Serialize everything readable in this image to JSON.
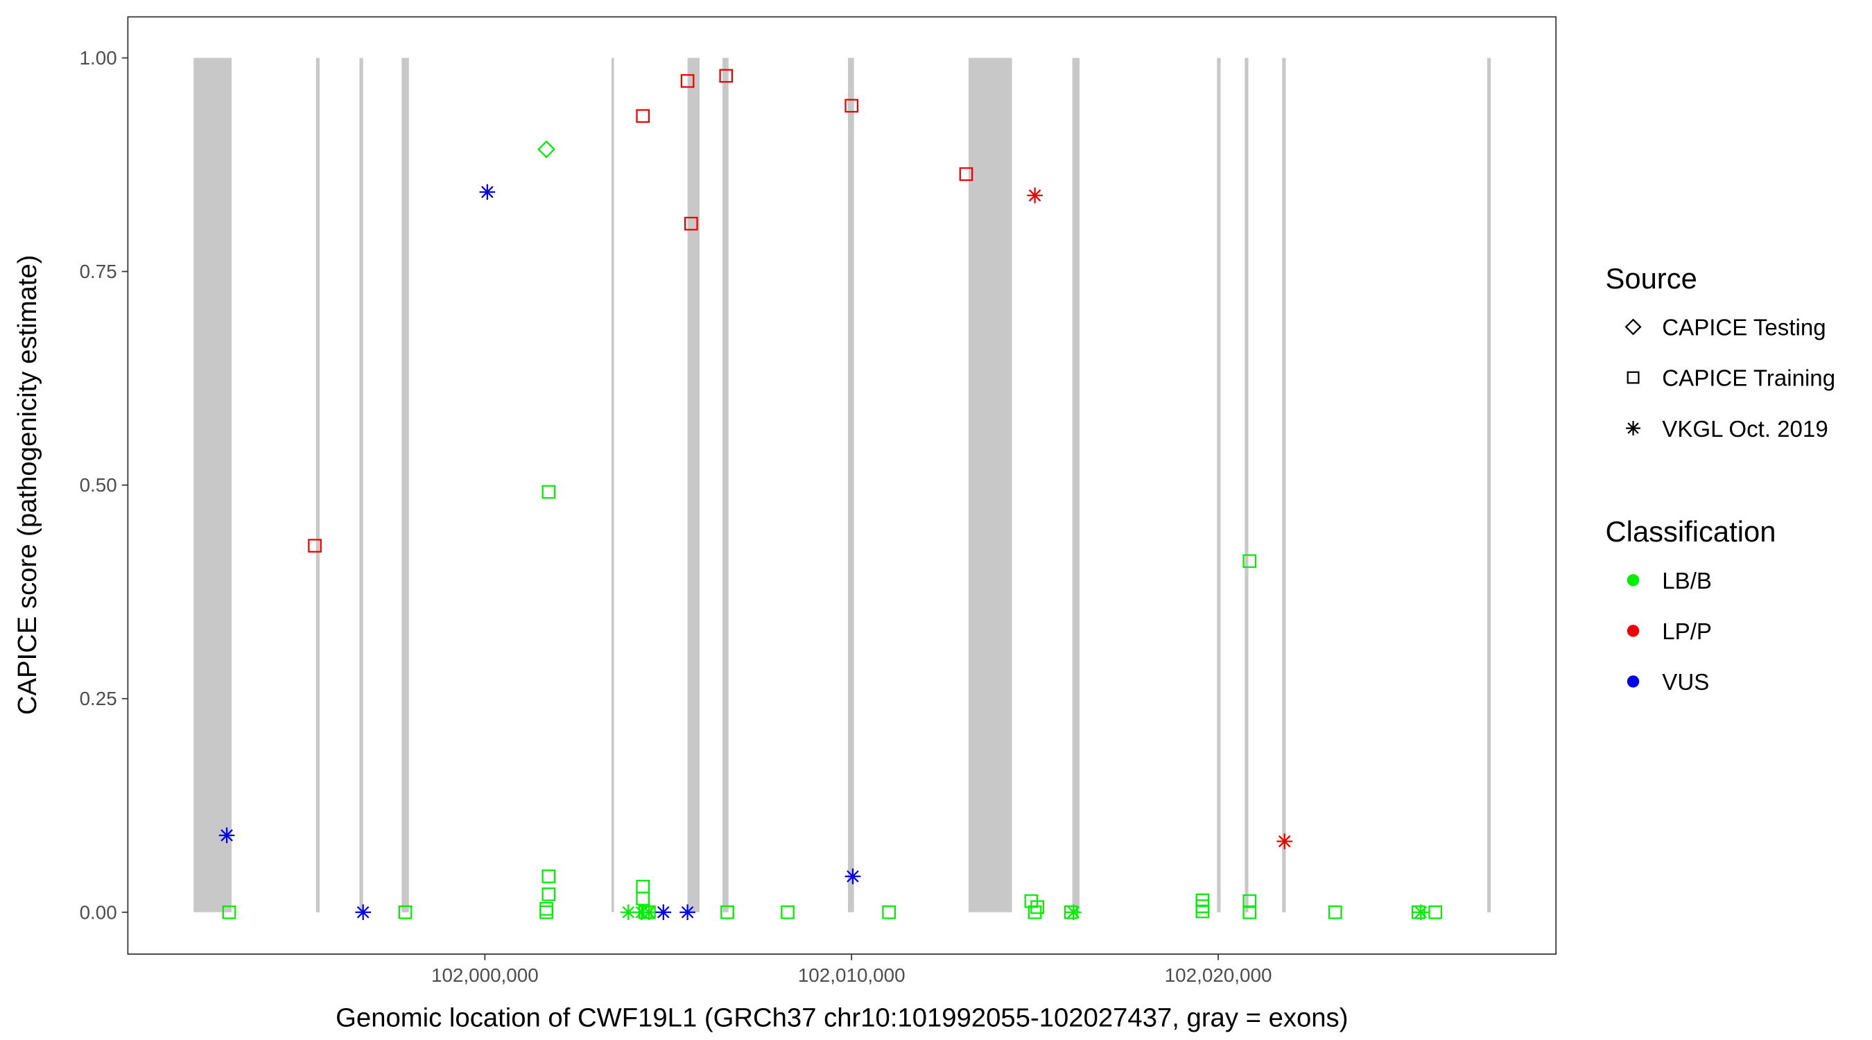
{
  "chart_data": {
    "type": "scatter",
    "x_label": "Genomic location of CWF19L1 (GRCh37 chr10:101992055-102027437, gray = exons)",
    "y_label": "CAPICE score (pathogenicity estimate)",
    "xlim": [
      101990263,
      102029211
    ],
    "ylim": [
      -0.049,
      1.048
    ],
    "xticks": [
      {
        "value": 102000000,
        "label": "102,000,000"
      },
      {
        "value": 102010000,
        "label": "102,010,000"
      },
      {
        "value": 102020000,
        "label": "102,020,000"
      }
    ],
    "yticks": [
      {
        "value": 0,
        "label": "0.00"
      },
      {
        "value": 0.25,
        "label": "0.25"
      },
      {
        "value": 0.5,
        "label": "0.50"
      },
      {
        "value": 0.75,
        "label": "0.75"
      },
      {
        "value": 1,
        "label": "1.00"
      }
    ],
    "exon_color": "#c8c8c8",
    "exons": [
      [
        101992055,
        101993092
      ],
      [
        101995395,
        101995493
      ],
      [
        101996579,
        101996678
      ],
      [
        101997730,
        101997928
      ],
      [
        102003454,
        102003520
      ],
      [
        102005526,
        102005855
      ],
      [
        102006480,
        102006645
      ],
      [
        102009901,
        102010066
      ],
      [
        102013191,
        102014375
      ],
      [
        102016020,
        102016217
      ],
      [
        102019967,
        102020066
      ],
      [
        102020724,
        102020822
      ],
      [
        102021743,
        102021842
      ],
      [
        102027336,
        102027434
      ]
    ],
    "legend": {
      "source_title": "Source",
      "sources": [
        {
          "name": "CAPICE Testing",
          "shape": "diamond"
        },
        {
          "name": "CAPICE Training",
          "shape": "square"
        },
        {
          "name": "VKGL Oct. 2019",
          "shape": "asterisk"
        }
      ],
      "classification_title": "Classification",
      "classifications": [
        {
          "name": "LB/B",
          "color": "#00ee00"
        },
        {
          "name": "LP/P",
          "color": "#ee0000"
        },
        {
          "name": "VUS",
          "color": "#0000ee"
        }
      ]
    },
    "series": [
      {
        "shape": "square",
        "color": "#00ee00",
        "x": [
          101993026,
          101997829,
          102001678,
          102001678,
          102001740,
          102001740,
          102001740,
          102004309,
          102004309,
          102004375,
          102004474,
          102006612,
          102008257,
          102011020,
          102014901,
          102015000,
          102015066,
          102015987,
          102019572,
          102019572,
          102019572,
          102020855,
          102020855,
          102020855,
          102023191,
          102025461,
          102025921
        ],
        "y": [
          0,
          0,
          0,
          0.004,
          0.021,
          0.042,
          0.492,
          0.03,
          0.016,
          0,
          0,
          0,
          0,
          0,
          0.013,
          0,
          0.006,
          0,
          0.014,
          0.007,
          0.001,
          0.411,
          0.013,
          0,
          0,
          0,
          0
        ]
      },
      {
        "shape": "diamond",
        "color": "#00ee00",
        "x": [
          102001678
        ],
        "y": [
          0.893
        ]
      },
      {
        "shape": "asterisk",
        "color": "#00ee00",
        "x": [
          102003914,
          102004276,
          102004474,
          102016053,
          102025526
        ],
        "y": [
          0,
          0,
          0,
          0,
          0
        ]
      },
      {
        "shape": "square",
        "color": "#ee0000",
        "x": [
          101995362,
          102004309,
          102005526,
          102005625,
          102006579,
          102010000,
          102013125
        ],
        "y": [
          0.429,
          0.932,
          0.973,
          0.806,
          0.979,
          0.944,
          0.864
        ]
      },
      {
        "shape": "asterisk",
        "color": "#ee0000",
        "x": [
          102015000,
          102021809
        ],
        "y": [
          0.839,
          0.083
        ]
      },
      {
        "shape": "asterisk",
        "color": "#0000ee",
        "x": [
          101992961,
          101996678,
          102000066,
          102004868,
          102005526,
          102010033
        ],
        "y": [
          0.09,
          0,
          0.843,
          0,
          0,
          0.042
        ]
      }
    ]
  }
}
